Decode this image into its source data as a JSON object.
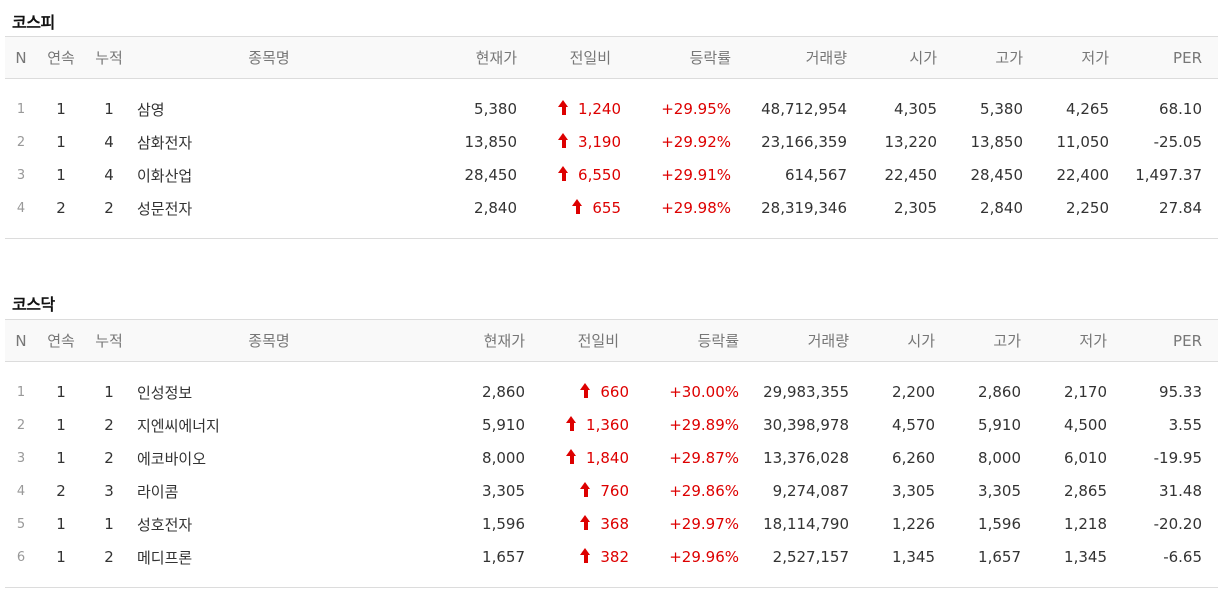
{
  "colors": {
    "up": "#dd0000",
    "header_bg": "#f9f9f9",
    "border": "#dcdcdc"
  },
  "columns": [
    "N",
    "연속",
    "누적",
    "종목명",
    "현재가",
    "전일비",
    "등락률",
    "거래량",
    "시가",
    "고가",
    "저가",
    "PER"
  ],
  "kospi": {
    "title": "코스피",
    "rows": [
      {
        "n": "1",
        "streak": "1",
        "cumulative": "1",
        "name": "삼영",
        "price": "5,380",
        "change": "1,240",
        "rate": "+29.95%",
        "volume": "48,712,954",
        "open": "4,305",
        "high": "5,380",
        "low": "4,265",
        "per": "68.10"
      },
      {
        "n": "2",
        "streak": "1",
        "cumulative": "4",
        "name": "삼화전자",
        "price": "13,850",
        "change": "3,190",
        "rate": "+29.92%",
        "volume": "23,166,359",
        "open": "13,220",
        "high": "13,850",
        "low": "11,050",
        "per": "-25.05"
      },
      {
        "n": "3",
        "streak": "1",
        "cumulative": "4",
        "name": "이화산업",
        "price": "28,450",
        "change": "6,550",
        "rate": "+29.91%",
        "volume": "614,567",
        "open": "22,450",
        "high": "28,450",
        "low": "22,400",
        "per": "1,497.37"
      },
      {
        "n": "4",
        "streak": "2",
        "cumulative": "2",
        "name": "성문전자",
        "price": "2,840",
        "change": "655",
        "rate": "+29.98%",
        "volume": "28,319,346",
        "open": "2,305",
        "high": "2,840",
        "low": "2,250",
        "per": "27.84"
      }
    ]
  },
  "kosdaq": {
    "title": "코스닥",
    "rows": [
      {
        "n": "1",
        "streak": "1",
        "cumulative": "1",
        "name": "인성정보",
        "price": "2,860",
        "change": "660",
        "rate": "+30.00%",
        "volume": "29,983,355",
        "open": "2,200",
        "high": "2,860",
        "low": "2,170",
        "per": "95.33"
      },
      {
        "n": "2",
        "streak": "1",
        "cumulative": "2",
        "name": "지엔씨에너지",
        "price": "5,910",
        "change": "1,360",
        "rate": "+29.89%",
        "volume": "30,398,978",
        "open": "4,570",
        "high": "5,910",
        "low": "4,500",
        "per": "3.55"
      },
      {
        "n": "3",
        "streak": "1",
        "cumulative": "2",
        "name": "에코바이오",
        "price": "8,000",
        "change": "1,840",
        "rate": "+29.87%",
        "volume": "13,376,028",
        "open": "6,260",
        "high": "8,000",
        "low": "6,010",
        "per": "-19.95"
      },
      {
        "n": "4",
        "streak": "2",
        "cumulative": "3",
        "name": "라이콤",
        "price": "3,305",
        "change": "760",
        "rate": "+29.86%",
        "volume": "9,274,087",
        "open": "3,305",
        "high": "3,305",
        "low": "2,865",
        "per": "31.48"
      },
      {
        "n": "5",
        "streak": "1",
        "cumulative": "1",
        "name": "성호전자",
        "price": "1,596",
        "change": "368",
        "rate": "+29.97%",
        "volume": "18,114,790",
        "open": "1,226",
        "high": "1,596",
        "low": "1,218",
        "per": "-20.20"
      },
      {
        "n": "6",
        "streak": "1",
        "cumulative": "2",
        "name": "메디프론",
        "price": "1,657",
        "change": "382",
        "rate": "+29.96%",
        "volume": "2,527,157",
        "open": "1,345",
        "high": "1,657",
        "low": "1,345",
        "per": "-6.65"
      }
    ]
  }
}
